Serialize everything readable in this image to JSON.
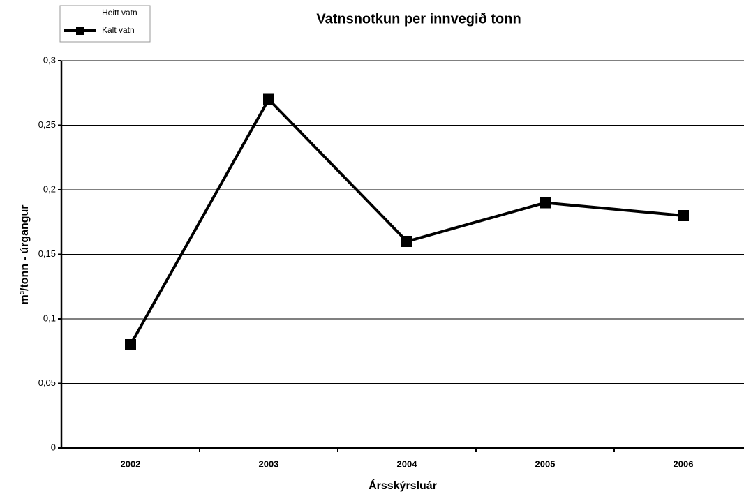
{
  "chart_data": {
    "type": "line",
    "title": "Vatnsnotkun per innvegið tonn",
    "x_label": "Ársskýrsluár",
    "y_label": "m³/tonn - úrgangur",
    "categories": [
      "2002",
      "2003",
      "2004",
      "2005",
      "2006"
    ],
    "series": [
      {
        "name": "Heitt vatn",
        "color": "#ffffff",
        "values": [
          null,
          null,
          null,
          null,
          null
        ]
      },
      {
        "name": "Kalt vatn",
        "color": "#000000",
        "values": [
          0.08,
          0.27,
          0.16,
          0.19,
          0.18
        ]
      }
    ],
    "ylim": [
      0,
      0.3
    ],
    "yticks": [
      {
        "value": 0,
        "label": "0"
      },
      {
        "value": 0.05,
        "label": "0,05"
      },
      {
        "value": 0.1,
        "label": "0,1"
      },
      {
        "value": 0.15,
        "label": "0,15"
      },
      {
        "value": 0.2,
        "label": "0,2"
      },
      {
        "value": 0.25,
        "label": "0,25"
      },
      {
        "value": 0.3,
        "label": "0,3"
      }
    ],
    "grid": true,
    "legend": "top-left"
  }
}
